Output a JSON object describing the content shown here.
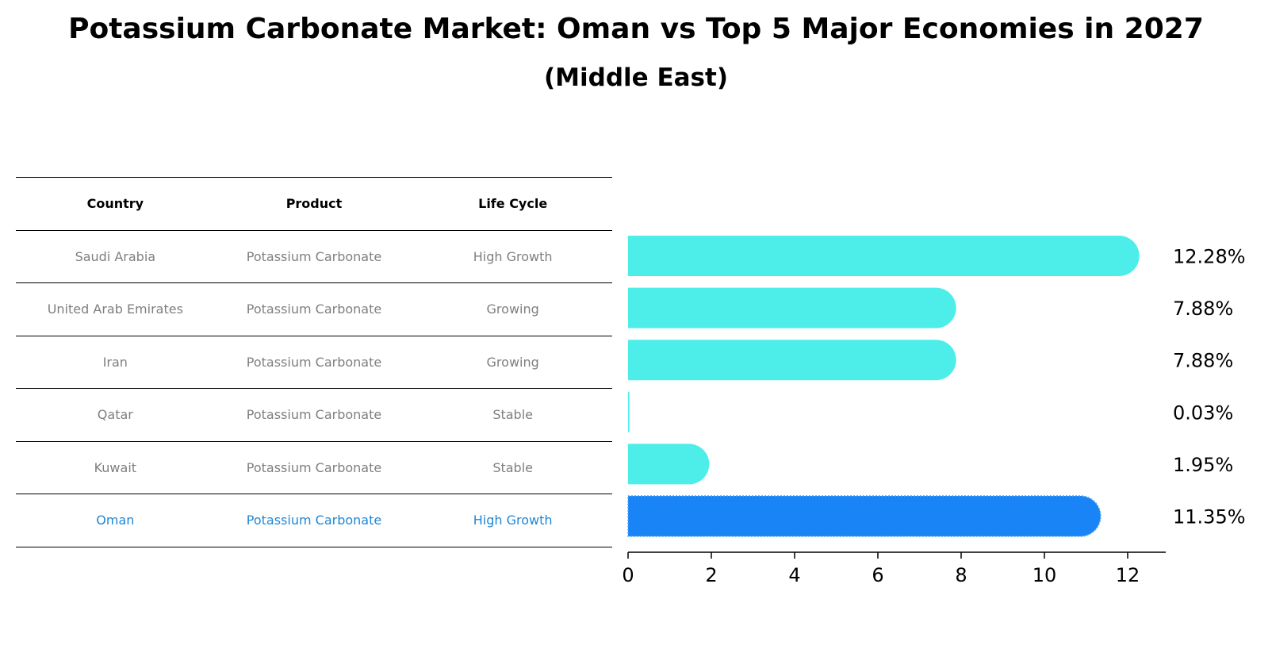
{
  "title": "Potassium Carbonate Market: Oman vs Top 5 Major Economies in 2027",
  "subtitle": "(Middle East)",
  "table": {
    "headers": [
      "Country",
      "Product",
      "Life Cycle"
    ],
    "rows": [
      {
        "country": "Saudi Arabia",
        "product": "Potassium Carbonate",
        "life_cycle": "High Growth"
      },
      {
        "country": "United Arab Emirates",
        "product": "Potassium Carbonate",
        "life_cycle": "Growing"
      },
      {
        "country": "Iran",
        "product": "Potassium Carbonate",
        "life_cycle": "Growing"
      },
      {
        "country": "Qatar",
        "product": "Potassium Carbonate",
        "life_cycle": "Stable"
      },
      {
        "country": "Kuwait",
        "product": "Potassium Carbonate",
        "life_cycle": "Stable"
      },
      {
        "country": "Oman",
        "product": "Potassium Carbonate",
        "life_cycle": "High Growth"
      }
    ]
  },
  "chart_data": {
    "type": "bar",
    "orientation": "horizontal",
    "categories": [
      "Saudi Arabia",
      "United Arab Emirates",
      "Iran",
      "Qatar",
      "Kuwait",
      "Oman"
    ],
    "values": [
      12.28,
      7.88,
      7.88,
      0.03,
      1.95,
      11.35
    ],
    "value_labels": [
      "12.28%",
      "7.88%",
      "7.88%",
      "0.03%",
      "1.95%",
      "11.35%"
    ],
    "highlight_category": "Oman",
    "xlim": [
      0,
      12.9
    ],
    "xticks": [
      0,
      2,
      4,
      6,
      8,
      10,
      12
    ],
    "xlabel": "",
    "ylabel": "",
    "grid": false
  },
  "colors": {
    "bar": "#4deeea",
    "highlight_bar": "#1884f5",
    "highlight_text": "#1f87d6",
    "muted_text": "#7f7f7f"
  }
}
